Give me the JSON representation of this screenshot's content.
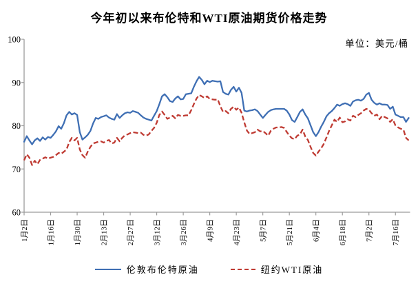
{
  "title": "今年初以来布伦特和WTI原油期货价格走势",
  "unit_label": "单位：美元/桶",
  "legend": [
    {
      "label": "伦敦布伦特原油",
      "color": "#3f6fb4",
      "style": "solid"
    },
    {
      "label": "纽约WTI原油",
      "color": "#bf3a32",
      "style": "dashed"
    }
  ],
  "chart_data": {
    "type": "line",
    "title": "今年初以来布伦特和WTI原油期货价格走势",
    "ylabel": "美元/桶",
    "ylim": [
      60,
      100
    ],
    "y_ticks": [
      100,
      90,
      80,
      70,
      60
    ],
    "grid": false,
    "legend_position": "bottom",
    "x_tick_labels": [
      "1月2日",
      "1月16日",
      "1月30日",
      "2月13日",
      "2月27日",
      "3月12日",
      "3月26日",
      "4月9日",
      "4月23日",
      "5月7日",
      "5月21日",
      "6月4日",
      "6月18日",
      "7月2日",
      "7月16日"
    ],
    "points_per_tick": 10,
    "series": [
      {
        "name": "伦敦布伦特原油",
        "color": "#3f6fb4",
        "dash": false,
        "values": [
          76.3,
          77.6,
          76.6,
          75.7,
          76.6,
          77.1,
          76.5,
          77.3,
          76.8,
          77.4,
          77.2,
          77.9,
          78.7,
          79.9,
          79.3,
          80.6,
          82.4,
          83.2,
          82.6,
          82.9,
          82.5,
          78.5,
          76.8,
          77.3,
          77.9,
          78.8,
          80.5,
          81.8,
          81.6,
          82.0,
          82.2,
          82.4,
          81.9,
          81.6,
          81.4,
          82.7,
          81.8,
          82.4,
          82.9,
          83.1,
          83.0,
          83.4,
          83.2,
          83.0,
          82.4,
          81.9,
          81.6,
          81.4,
          81.2,
          82.3,
          83.4,
          85.0,
          86.8,
          87.3,
          86.6,
          85.7,
          85.5,
          86.3,
          86.8,
          86.1,
          86.2,
          87.3,
          87.4,
          87.5,
          89.0,
          90.3,
          91.3,
          90.6,
          89.6,
          90.4,
          90.1,
          90.4,
          90.3,
          90.2,
          90.3,
          87.8,
          87.4,
          87.2,
          88.3,
          89.0,
          87.9,
          88.8,
          87.6,
          83.5,
          83.3,
          83.5,
          83.6,
          83.8,
          83.4,
          82.6,
          81.8,
          82.5,
          83.2,
          83.6,
          83.8,
          83.9,
          83.9,
          83.9,
          83.9,
          83.5,
          82.6,
          81.3,
          80.9,
          82.0,
          83.2,
          83.8,
          82.6,
          81.7,
          80.1,
          78.5,
          77.6,
          78.5,
          79.8,
          80.9,
          82.2,
          82.9,
          83.4,
          84.1,
          84.9,
          84.6,
          85.0,
          85.2,
          85.0,
          84.6,
          85.6,
          85.9,
          86.0,
          85.8,
          86.2,
          87.2,
          87.6,
          86.0,
          85.3,
          84.9,
          85.2,
          84.9,
          84.9,
          84.8,
          83.9,
          84.4,
          82.6,
          82.3,
          82.0,
          82.0,
          80.9,
          81.8
        ]
      },
      {
        "name": "纽约WTI原油",
        "color": "#bf3a32",
        "dash": true,
        "values": [
          72.0,
          73.4,
          72.6,
          70.9,
          71.9,
          71.1,
          72.1,
          72.4,
          72.7,
          72.4,
          72.6,
          72.8,
          73.2,
          73.7,
          73.5,
          74.0,
          74.5,
          76.2,
          77.2,
          76.6,
          77.2,
          74.5,
          73.2,
          72.6,
          74.0,
          75.1,
          75.9,
          76.1,
          76.3,
          76.4,
          76.1,
          76.5,
          76.7,
          75.9,
          76.1,
          77.2,
          76.4,
          77.2,
          77.8,
          78.0,
          78.3,
          78.5,
          78.4,
          78.3,
          78.4,
          77.9,
          77.7,
          78.0,
          78.8,
          79.5,
          80.7,
          82.5,
          83.3,
          82.5,
          81.6,
          81.9,
          82.3,
          81.7,
          82.5,
          82.3,
          82.3,
          82.4,
          82.4,
          83.6,
          85.0,
          86.3,
          87.1,
          86.8,
          86.4,
          86.8,
          86.2,
          86.1,
          86.0,
          86.1,
          84.5,
          83.2,
          83.4,
          82.9,
          83.9,
          84.4,
          83.7,
          84.2,
          83.0,
          80.8,
          78.9,
          78.1,
          78.3,
          78.5,
          79.1,
          78.7,
          78.8,
          78.3,
          77.7,
          78.8,
          79.3,
          79.6,
          79.6,
          79.7,
          79.5,
          78.6,
          77.7,
          77.1,
          76.9,
          77.7,
          78.0,
          79.1,
          77.5,
          76.7,
          75.1,
          73.7,
          73.1,
          74.0,
          74.8,
          75.8,
          77.3,
          78.8,
          80.1,
          81.4,
          80.9,
          81.9,
          80.8,
          81.0,
          81.5,
          81.2,
          82.3,
          82.0,
          82.5,
          82.9,
          83.5,
          83.9,
          83.7,
          82.9,
          82.3,
          82.6,
          81.5,
          82.3,
          82.0,
          81.7,
          80.9,
          81.5,
          80.1,
          79.6,
          79.3,
          79.1,
          77.2,
          76.6
        ]
      }
    ]
  }
}
